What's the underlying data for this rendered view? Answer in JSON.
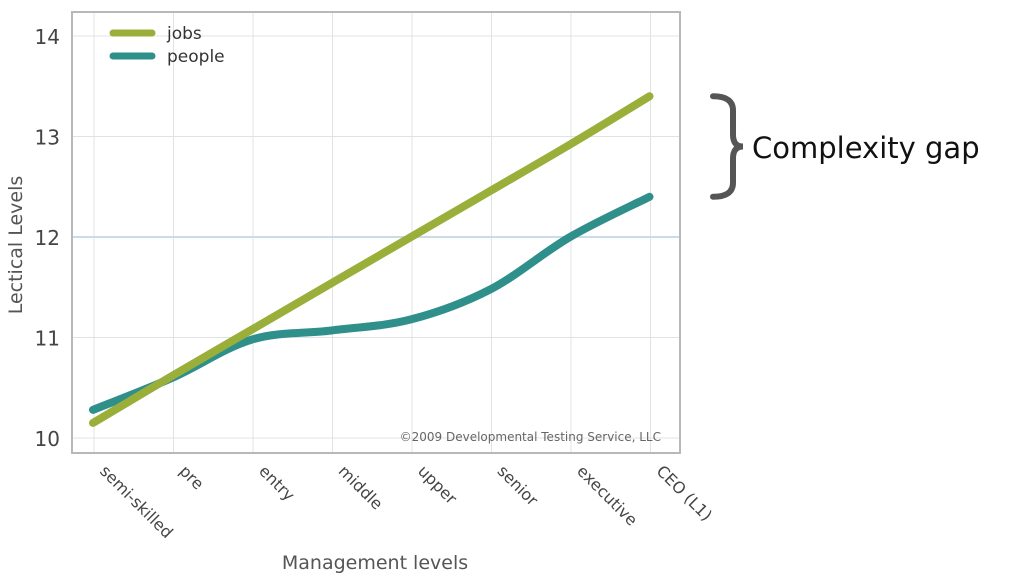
{
  "chart_data": {
    "type": "line",
    "categories": [
      "semi-skilled",
      "pre",
      "entry",
      "middle",
      "upper",
      "senior",
      "executive",
      "CEO (L1)"
    ],
    "xlabel": "Management levels",
    "ylabel": "Lectical Levels",
    "yticks": [
      10,
      11,
      12,
      13,
      14
    ],
    "ylim": [
      10,
      14.2
    ],
    "grid": true,
    "highlight_line": 12,
    "legend_position": "top-left",
    "series": [
      {
        "name": "jobs",
        "color": "#9aaf3a",
        "values": [
          10.15,
          10.62,
          11.08,
          11.54,
          12.0,
          12.46,
          12.92,
          13.4
        ]
      },
      {
        "name": "people",
        "color": "#2f8f8a",
        "values": [
          10.28,
          10.6,
          10.98,
          11.07,
          11.18,
          11.48,
          12.0,
          12.4
        ]
      }
    ],
    "annotation": {
      "text": "Complexity gap",
      "brace_from": 12.4,
      "brace_to": 13.4
    },
    "copyright": "©2009 Developmental Testing Service, LLC"
  },
  "colors": {
    "grid": "#dfe3e6",
    "highlight": "#c8dde8",
    "frame": "#b8b8b8",
    "brace": "#555555",
    "text": "#444444"
  }
}
